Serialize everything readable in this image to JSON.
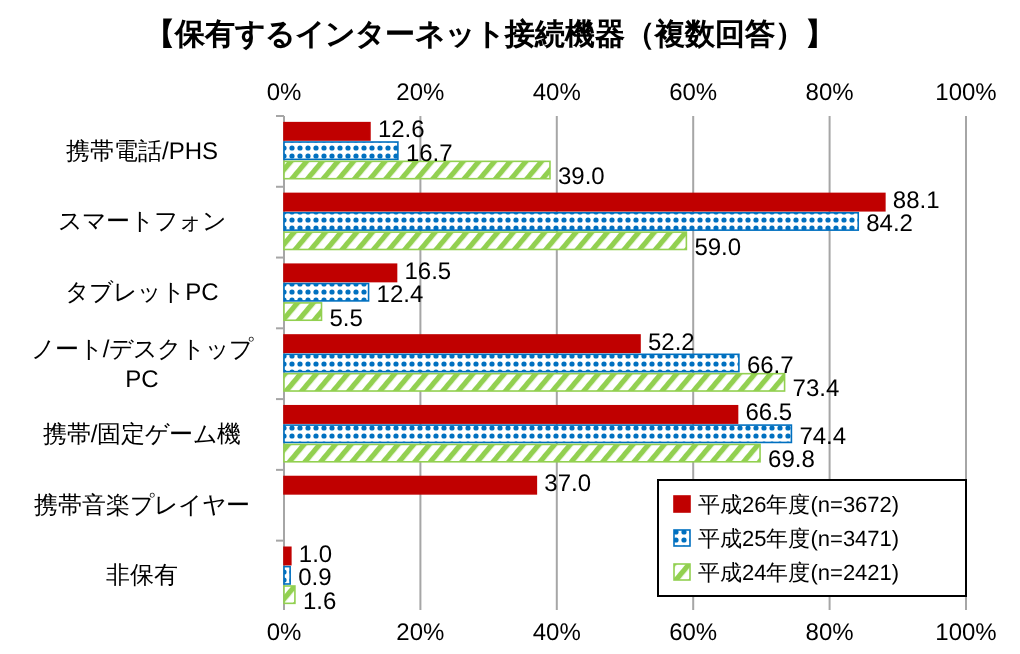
{
  "chart_data": {
    "type": "bar",
    "orientation": "horizontal",
    "title": "【保有するインターネット接続機器（複数回答）】",
    "categories": [
      "携帯電話/PHS",
      "スマートフォン",
      "タブレットPC",
      "ノート/デスクトップPC",
      "携帯/固定ゲーム機",
      "携帯音楽プレイヤー",
      "非保有"
    ],
    "series": [
      {
        "name": "平成26年度(n=3672)",
        "color": "#c00000",
        "values": [
          12.6,
          88.1,
          16.5,
          52.2,
          66.5,
          37.0,
          1.0
        ],
        "value_labels": [
          "12.6",
          "88.1",
          "16.5",
          "52.2",
          "66.5",
          "37.0",
          "1.0"
        ]
      },
      {
        "name": "平成25年度(n=3471)",
        "color": "#0070c0",
        "values": [
          16.7,
          84.2,
          12.4,
          66.7,
          74.4,
          null,
          0.9
        ],
        "value_labels": [
          "16.7",
          "84.2",
          "12.4",
          "66.7",
          "74.4",
          null,
          "0.9"
        ]
      },
      {
        "name": "平成24年度(n=2421)",
        "color": "#92d050",
        "values": [
          39.0,
          59.0,
          5.5,
          73.4,
          69.8,
          null,
          1.6
        ],
        "value_labels": [
          "39.0",
          "59.0",
          "5.5",
          "73.4",
          "69.8",
          null,
          "1.6"
        ]
      }
    ],
    "xlim": [
      0,
      100
    ],
    "xticks": [
      {
        "value": 0,
        "label": "0%"
      },
      {
        "value": 20,
        "label": "20%"
      },
      {
        "value": 40,
        "label": "40%"
      },
      {
        "value": 60,
        "label": "60%"
      },
      {
        "value": 80,
        "label": "80%"
      },
      {
        "value": 100,
        "label": "100%"
      }
    ],
    "x2lim": [
      0,
      100
    ],
    "x2ticks": [
      {
        "value": 0,
        "label": "0%"
      },
      {
        "value": 20,
        "label": "20%"
      },
      {
        "value": 40,
        "label": "40%"
      },
      {
        "value": 60,
        "label": "60%"
      },
      {
        "value": 80,
        "label": "80%"
      },
      {
        "value": 100,
        "label": "100%"
      }
    ],
    "grid": "x",
    "legend": "bottom right"
  }
}
